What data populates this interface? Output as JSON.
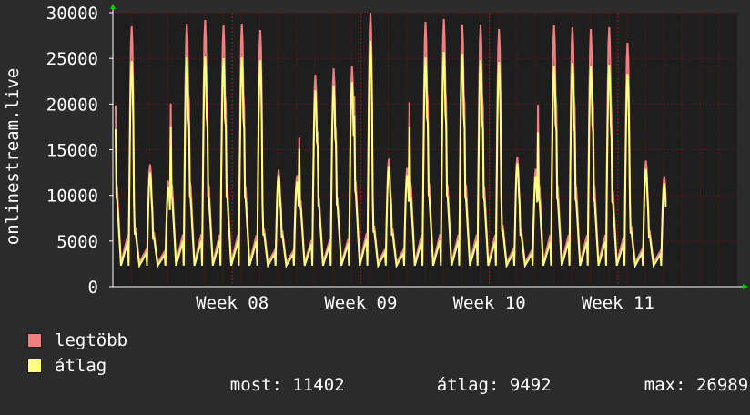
{
  "colors": {
    "background": "#2b2b2b",
    "plot_background": "#1e1e1e",
    "grid": "#7a1414",
    "axis_arrow": "#00cc00",
    "max_series": "#f08080",
    "avg_series": "#ffff80"
  },
  "chart_data": {
    "type": "area",
    "ylabel": "onlinestream.live",
    "ylim": [
      0,
      30000
    ],
    "y_ticks": [
      "0",
      "5000",
      "10000",
      "15000",
      "20000",
      "25000",
      "30000"
    ],
    "y_tick_values": [
      0,
      5000,
      10000,
      15000,
      20000,
      25000,
      30000
    ],
    "x_range_days": [
      0,
      34
    ],
    "x_ticks": [
      {
        "label": "Week 08",
        "day": 6.5
      },
      {
        "label": "Week 09",
        "day": 13.5
      },
      {
        "label": "Week 10",
        "day": 20.5
      },
      {
        "label": "Week 11",
        "day": 27.5
      }
    ],
    "grid": true,
    "legend_position": "bottom-left",
    "daily_peaks": {
      "max": [
        28500,
        13400,
        11600,
        28800,
        29200,
        28600,
        28800,
        28100,
        12800,
        12200,
        23200,
        23900,
        24200,
        30000,
        14000,
        13000,
        29000,
        29300,
        28700,
        28700,
        28200,
        14200,
        12900,
        28600,
        28400,
        28200,
        28400,
        26700,
        13800,
        12100
      ],
      "avg": [
        24700,
        12500,
        10900,
        25100,
        25200,
        25000,
        25100,
        24800,
        12200,
        11500,
        21500,
        22000,
        22400,
        26900,
        13200,
        12200,
        25100,
        25700,
        25500,
        24800,
        24600,
        13500,
        12100,
        24200,
        24500,
        24100,
        24300,
        23300,
        12900,
        11300
      ]
    },
    "series": [
      {
        "name": "legtöbb",
        "color": "#f08080"
      },
      {
        "name": "átlag",
        "color": "#ffff80"
      }
    ]
  },
  "legend": {
    "items": [
      {
        "label": "legtöbb",
        "color": "#f08080"
      },
      {
        "label": "átlag",
        "color": "#ffff80"
      }
    ],
    "stats": {
      "current_label": "most:",
      "current_value": "11402",
      "average_label": "átlag:",
      "average_value": "9492",
      "max_label": "max:",
      "max_value": "26989"
    }
  }
}
